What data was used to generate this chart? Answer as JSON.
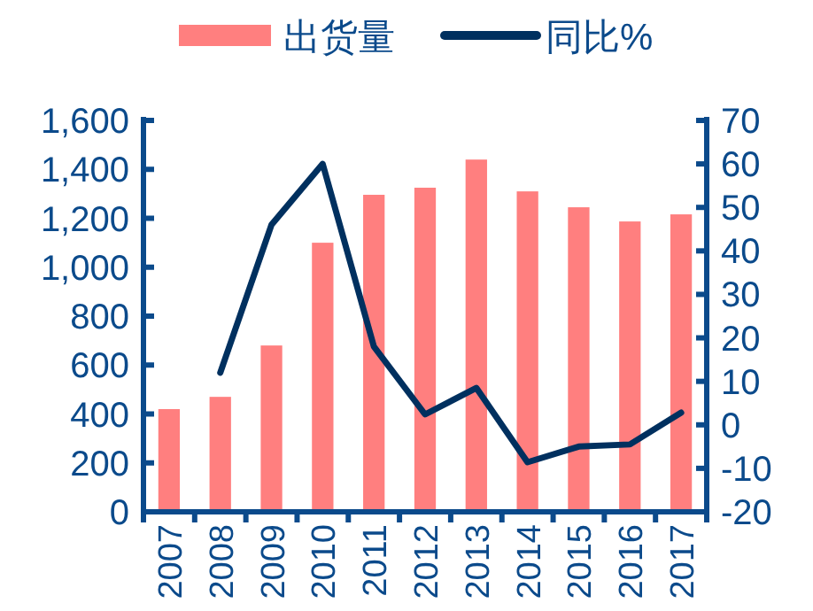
{
  "chart_data": {
    "type": "bar",
    "categories": [
      "2007",
      "2008",
      "2009",
      "2010",
      "2011",
      "2012",
      "2013",
      "2014",
      "2015",
      "2016",
      "2017"
    ],
    "series": [
      {
        "name": "出货量",
        "color": "#ff7f7f",
        "values": [
          420,
          470,
          680,
          1100,
          1296,
          1325,
          1440,
          1310,
          1245,
          1187,
          1216
        ]
      },
      {
        "name": "同比%",
        "type": "line",
        "axis": "y2",
        "color": "#00305f",
        "values": [
          null,
          12,
          46,
          60,
          18,
          2.4,
          8.5,
          -8.6,
          -5,
          -4.5,
          2.8
        ]
      }
    ],
    "ylim": [
      0,
      1600
    ],
    "yticks": [
      0,
      200,
      400,
      600,
      800,
      {
        "value": 1000,
        "label": "1,000"
      },
      {
        "value": 1200,
        "label": "1,200"
      },
      {
        "value": 1400,
        "label": "1,400"
      },
      {
        "value": 1600,
        "label": "1,600"
      }
    ],
    "y2lim": [
      -20,
      70
    ],
    "y2ticks": [
      -20,
      -10,
      0,
      10,
      20,
      30,
      40,
      50,
      60,
      70
    ],
    "legend": "top",
    "line_style": "solid"
  }
}
